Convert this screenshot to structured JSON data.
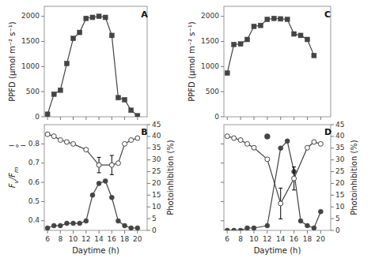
{
  "chart_data": [
    {
      "type": "line",
      "annotations": [
        "A"
      ],
      "ylabel": "PPFD (μmol m⁻² s⁻¹)",
      "xlim": [
        5.5,
        21.5
      ],
      "xticks": [
        6,
        8,
        10,
        12,
        14,
        16,
        18,
        20
      ],
      "ylim": [
        0,
        2200
      ],
      "yticks": [
        0,
        500,
        1000,
        1500,
        2000
      ],
      "grid": false,
      "tick_labels": "y",
      "series": [
        {
          "color": "#444444",
          "marker": "square",
          "x": [
            6,
            7,
            8,
            9,
            10,
            11,
            12,
            13,
            14,
            15,
            16,
            17,
            18,
            19,
            20
          ],
          "values": [
            50,
            450,
            530,
            1060,
            1560,
            1680,
            1960,
            1980,
            2000,
            1980,
            1620,
            380,
            340,
            130,
            20
          ]
        }
      ]
    },
    {
      "type": "line",
      "annotations": [
        "C"
      ],
      "ylabel": "PPFD (μmol m⁻² s⁻¹)",
      "xlim": [
        5.5,
        21.5
      ],
      "xticks": [
        6,
        8,
        10,
        12,
        14,
        16,
        18,
        20
      ],
      "ylim": [
        0,
        2200
      ],
      "yticks": [
        0,
        500,
        1000,
        1500,
        2000
      ],
      "grid": false,
      "tick_labels": "y",
      "series": [
        {
          "color": "#444444",
          "marker": "square",
          "x": [
            6,
            7,
            8,
            9,
            10,
            11,
            12,
            13,
            14,
            15,
            16,
            17,
            18,
            19
          ],
          "values": [
            870,
            1440,
            1450,
            1540,
            1800,
            1820,
            1940,
            1960,
            1950,
            1940,
            1650,
            1620,
            1540,
            1220
          ]
        }
      ]
    },
    {
      "type": "line",
      "annotations": [
        "B",
        "−∘−"
      ],
      "xlabel": "Daytime (h)",
      "ylabel": "Fv/Fm",
      "y2label": "Photoinhibition (%)",
      "xlim": [
        5.5,
        21.5
      ],
      "xticks": [
        6,
        8,
        10,
        12,
        14,
        16,
        18,
        20
      ],
      "ylim": [
        0.35,
        0.9
      ],
      "yticks": [
        0.4,
        0.5,
        0.6,
        0.7,
        0.8
      ],
      "y2lim": [
        0,
        45
      ],
      "y2ticks": [
        0,
        5,
        10,
        15,
        20,
        25,
        30,
        35,
        40,
        45
      ],
      "grid": false,
      "series": [
        {
          "color": "#444444",
          "marker": "circle",
          "axis": "y2",
          "x": [
            6,
            7,
            8,
            9,
            10,
            11,
            12,
            13,
            14,
            15,
            16,
            17,
            18,
            19,
            20
          ],
          "values": [
            1,
            2,
            2,
            3,
            3,
            3,
            4,
            15,
            20,
            21,
            14,
            4,
            2,
            1,
            1
          ]
        },
        {
          "color": "#444444",
          "marker": "open-circle",
          "x": [
            6,
            7,
            8,
            9,
            10,
            12,
            14,
            16,
            17,
            18,
            19,
            20
          ],
          "values": [
            0.85,
            0.84,
            0.82,
            0.81,
            0.8,
            0.77,
            0.69,
            0.69,
            0.7,
            0.8,
            0.82,
            0.83
          ],
          "errors": [
            0,
            0,
            0,
            0,
            0,
            0,
            0.04,
            0.05,
            0,
            0,
            0,
            0
          ]
        }
      ]
    },
    {
      "type": "line",
      "annotations": [
        "D"
      ],
      "xlabel": "Daytime (h)",
      "y2label": "Photoinhibition (%)",
      "xlim": [
        5.5,
        21.5
      ],
      "xticks": [
        6,
        8,
        10,
        12,
        14,
        16,
        18,
        20
      ],
      "ylim": [
        0.35,
        0.9
      ],
      "yticks": [
        0.4,
        0.5,
        0.6,
        0.7,
        0.8
      ],
      "y2lim": [
        0,
        45
      ],
      "y2ticks": [
        0,
        5,
        10,
        15,
        20,
        25,
        30,
        35,
        40,
        45
      ],
      "grid": false,
      "tick_labels": "x",
      "series": [
        {
          "color": "#444444",
          "marker": "circle",
          "axis": "y2",
          "x": [
            6,
            7,
            8,
            9,
            10,
            12,
            14,
            15,
            16,
            17,
            18,
            19,
            20
          ],
          "values": [
            0,
            0,
            0,
            1,
            1,
            2,
            35,
            38,
            25,
            4,
            2,
            1,
            8
          ]
        },
        {
          "color": "#444444",
          "marker": "circle",
          "axis": "y2",
          "line_style": "none",
          "x": [
            12
          ],
          "values": [
            40
          ]
        },
        {
          "color": "#444444",
          "marker": "open-circle",
          "x": [
            6,
            7,
            8,
            9,
            10,
            12,
            14,
            16,
            18,
            19,
            20
          ],
          "values": [
            0.84,
            0.83,
            0.82,
            0.8,
            0.78,
            0.72,
            0.49,
            0.62,
            0.78,
            0.81,
            0.8
          ],
          "errors": [
            0,
            0,
            0,
            0,
            0,
            0,
            0.08,
            0.06,
            0,
            0,
            0
          ]
        }
      ]
    }
  ]
}
